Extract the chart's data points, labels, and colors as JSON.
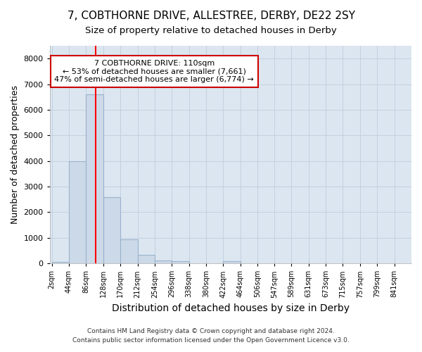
{
  "title": "7, COBTHORNE DRIVE, ALLESTREE, DERBY, DE22 2SY",
  "subtitle": "Size of property relative to detached houses in Derby",
  "xlabel": "Distribution of detached houses by size in Derby",
  "ylabel": "Number of detached properties",
  "bin_edges": [
    2,
    44,
    86,
    128,
    170,
    212,
    254,
    296,
    338,
    380,
    422,
    464,
    506,
    547,
    589,
    631,
    673,
    715,
    757,
    799,
    841
  ],
  "bar_heights": [
    60,
    4000,
    6600,
    2600,
    950,
    330,
    120,
    100,
    0,
    0,
    80,
    0,
    0,
    0,
    0,
    0,
    0,
    0,
    0,
    0
  ],
  "bar_color": "#ccd9e8",
  "bar_edgecolor": "#99b3cc",
  "bar_linewidth": 0.8,
  "grid_color": "#c5d0e0",
  "background_color": "#dce6f0",
  "red_line_x": 110,
  "annotation_line1": "7 COBTHORNE DRIVE: 110sqm",
  "annotation_line2": "← 53% of detached houses are smaller (7,661)",
  "annotation_line3": "47% of semi-detached houses are larger (6,774) →",
  "annotation_box_color": "#cc0000",
  "annotation_text_color": "#000000",
  "ylim": [
    0,
    8500
  ],
  "yticks": [
    0,
    1000,
    2000,
    3000,
    4000,
    5000,
    6000,
    7000,
    8000
  ],
  "footnote1": "Contains HM Land Registry data © Crown copyright and database right 2024.",
  "footnote2": "Contains public sector information licensed under the Open Government Licence v3.0.",
  "title_fontsize": 11,
  "subtitle_fontsize": 9.5,
  "xlabel_fontsize": 10,
  "ylabel_fontsize": 9
}
